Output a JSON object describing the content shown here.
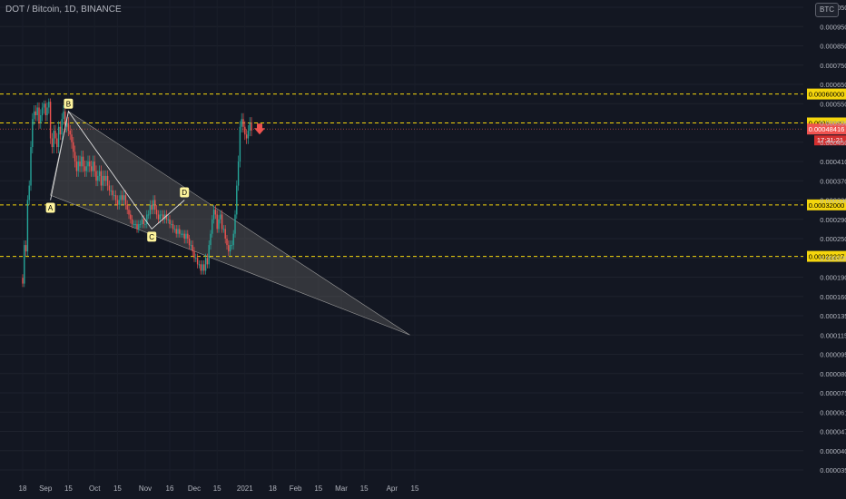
{
  "header": {
    "title": "DOT / Bitcoin, 1D, BINANCE"
  },
  "currency_badge": "BTC",
  "colors": {
    "background": "#131722",
    "up": "#26a69a",
    "down": "#ef5350",
    "level_line": "#f5d60d",
    "channel_fill": "#5a5a5a",
    "axis_text": "#b2b5be"
  },
  "chart_data": {
    "type": "candlestick",
    "title": "DOT / Bitcoin, 1D, BINANCE",
    "y_axis_ticks": [
      "0.00105000",
      "0.00095000",
      "0.00085000",
      "0.00075000",
      "0.00065000",
      "0.00055000",
      "0.00050000",
      "0.00045000",
      "0.00041000",
      "0.00037000",
      "0.00033000",
      "0.00029000",
      "0.00025000",
      "0.00022000",
      "0.00019000",
      "0.00016000",
      "0.00013500",
      "0.00011500",
      "0.00009500",
      "0.00008000",
      "0.00007500",
      "0.00006100",
      "0.00004700",
      "0.00004000",
      "0.00003500"
    ],
    "x_axis_ticks": [
      "18",
      "Sep",
      "15",
      "Oct",
      "15",
      "Nov",
      "16",
      "Dec",
      "15",
      "2021",
      "18",
      "Feb",
      "15",
      "Mar",
      "15",
      "Apr",
      "15"
    ],
    "horizontal_levels": [
      {
        "label": "0.00060000",
        "value": 0.0006
      },
      {
        "label": "0.00050000",
        "value": 0.0005
      },
      {
        "label": "0.00032000",
        "value": 0.00032
      },
      {
        "label": "0.00022237",
        "value": 0.00022237
      }
    ],
    "last_price": {
      "label": "0.00048416",
      "value": 0.00048416
    },
    "countdown": "17:31:21",
    "pattern_points": [
      {
        "label": "A",
        "date": "2020-09-04",
        "price": 0.00033
      },
      {
        "label": "B",
        "date": "2020-09-15",
        "price": 0.00053
      },
      {
        "label": "C",
        "date": "2020-11-05",
        "price": 0.00027
      },
      {
        "label": "D",
        "date": "2020-11-25",
        "price": 0.00033
      }
    ],
    "close_series": {
      "start_date": "2020-08-18",
      "closes": [
        0.00018,
        0.00024,
        0.00023,
        0.00033,
        0.00036,
        0.00044,
        0.00051,
        0.00053,
        0.00052,
        0.00054,
        0.0005,
        0.00052,
        0.00054,
        0.00055,
        0.00052,
        0.00054,
        0.00056,
        0.00046,
        0.00044,
        0.00048,
        0.00046,
        0.00044,
        0.00049,
        0.00047,
        0.00051,
        0.00053,
        0.00049,
        0.0005,
        0.00048,
        0.00047,
        0.00045,
        0.00043,
        0.00041,
        0.00039,
        0.00041,
        0.0004,
        0.00042,
        0.0004,
        0.00039,
        0.0004,
        0.00041,
        0.0004,
        0.00039,
        0.00041,
        0.00039,
        0.00037,
        0.00038,
        0.00039,
        0.00036,
        0.00038,
        0.00037,
        0.00038,
        0.00036,
        0.00035,
        0.00035,
        0.00034,
        0.00034,
        0.00033,
        0.00032,
        0.00033,
        0.00034,
        0.00033,
        0.00034,
        0.00032,
        0.00031,
        0.0003,
        0.00029,
        0.00028,
        0.00028,
        0.00028,
        0.00027,
        0.00028,
        0.00028,
        0.00029,
        0.00028,
        0.00028,
        0.0003,
        0.0003,
        0.00032,
        0.00031,
        0.00033,
        0.00031,
        0.0003,
        0.00029,
        0.0003,
        0.0003,
        0.00029,
        0.0003,
        0.00029,
        0.00029,
        0.00028,
        0.00028,
        0.00027,
        0.00027,
        0.00026,
        0.00027,
        0.00026,
        0.00026,
        0.00026,
        0.00025,
        0.00026,
        0.00025,
        0.00024,
        0.00024,
        0.00023,
        0.00022,
        0.00022,
        0.00021,
        0.00021,
        0.0002,
        0.00021,
        0.0002,
        0.00022,
        0.00021,
        0.00024,
        0.00026,
        0.00029,
        0.00031,
        0.0003,
        0.00027,
        0.00029,
        0.0003,
        0.00027,
        0.00027,
        0.00025,
        0.00024,
        0.00023,
        0.00024,
        0.00024,
        0.00026,
        0.0003,
        0.00036,
        0.00041,
        0.00049,
        0.00051,
        0.00049,
        0.00047,
        0.00046,
        0.00048,
        0.0005,
        0.00048
      ]
    },
    "triangle": [
      {
        "date": "2020-09-04",
        "price": 0.00034
      },
      {
        "date": "2020-09-15",
        "price": 0.00053
      },
      {
        "date": "2021-04-12",
        "price": 0.000115
      }
    ]
  }
}
